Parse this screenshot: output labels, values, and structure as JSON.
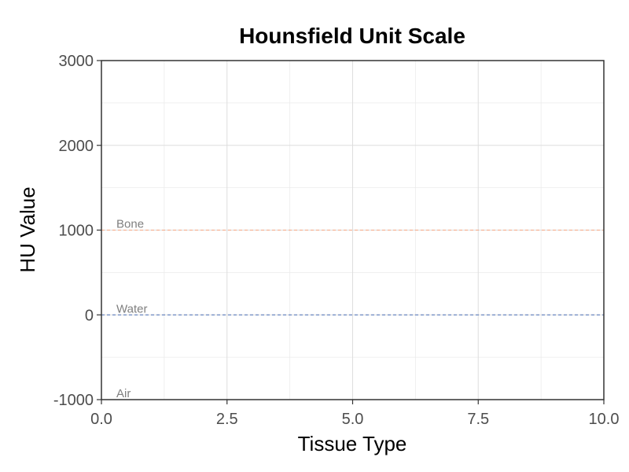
{
  "chart_data": {
    "type": "line",
    "title": "Hounsfield Unit Scale",
    "xlabel": "Tissue Type",
    "ylabel": "HU Value",
    "xlim": [
      0,
      10
    ],
    "ylim": [
      -1000,
      3000
    ],
    "x_ticks": [
      "0.0",
      "2.5",
      "5.0",
      "7.5",
      "10.0"
    ],
    "y_ticks": [
      "-1000",
      "0",
      "1000",
      "2000",
      "3000"
    ],
    "x_tick_values": [
      0,
      2.5,
      5,
      7.5,
      10
    ],
    "y_tick_values": [
      -1000,
      0,
      1000,
      2000,
      3000
    ],
    "grid": true,
    "reference_lines": [
      {
        "label": "Bone",
        "y": 1000,
        "color": "#f4a582",
        "style": "dashed"
      },
      {
        "label": "Water",
        "y": 0,
        "color": "#4a6fb5",
        "style": "dashed"
      },
      {
        "label": "Air",
        "y": -1000,
        "color": "#000000",
        "style": "dashed"
      }
    ]
  }
}
